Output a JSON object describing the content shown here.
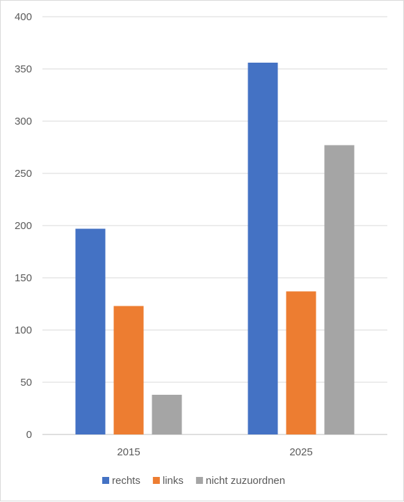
{
  "chart_data": {
    "type": "bar",
    "categories": [
      "2015",
      "2025"
    ],
    "series": [
      {
        "name": "rechts",
        "values": [
          197,
          356
        ],
        "color": "#4472c4"
      },
      {
        "name": "links",
        "values": [
          123,
          137
        ],
        "color": "#ed7d31"
      },
      {
        "name": "nicht zuzuordnen",
        "values": [
          38,
          277
        ],
        "color": "#a5a5a5"
      }
    ],
    "ylim": [
      0,
      400
    ],
    "yticks": [
      0,
      50,
      100,
      150,
      200,
      250,
      300,
      350,
      400
    ],
    "grid": true,
    "legend": "bottom",
    "title": "",
    "xlabel": "",
    "ylabel": ""
  }
}
